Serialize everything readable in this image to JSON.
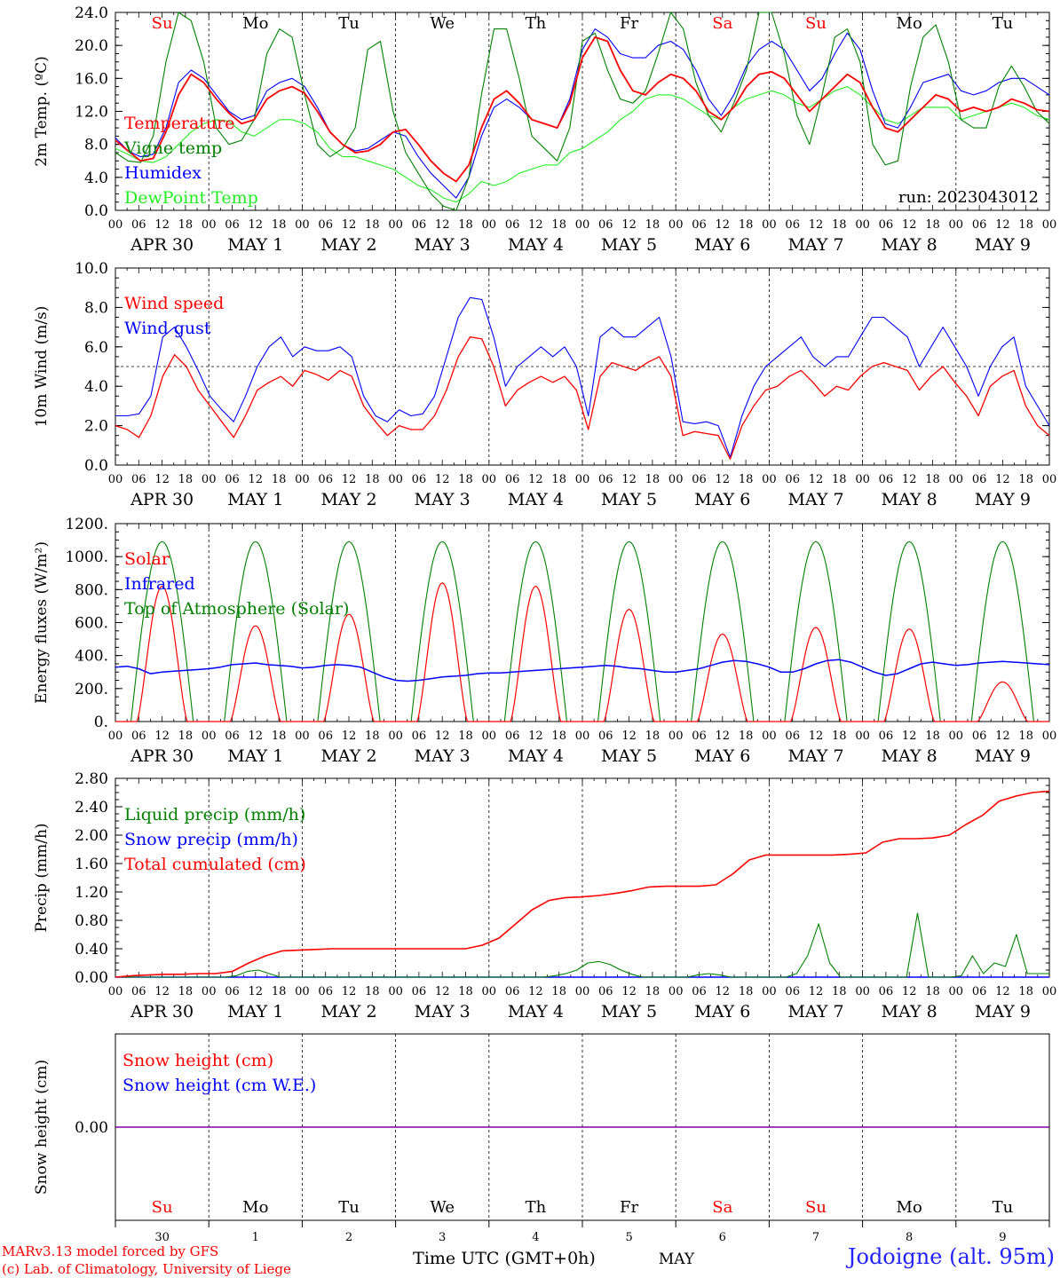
{
  "chart_data": [
    {
      "type": "line",
      "ylabel": "2m Temp. (ºC)",
      "ylim": [
        0,
        24
      ],
      "yticks": [
        "0.0",
        "4.0",
        "8.0",
        "12.0",
        "16.0",
        "20.0",
        "24.0"
      ],
      "day_labels": [
        "Su",
        "Mo",
        "Tu",
        "We",
        "Th",
        "Fr",
        "Sa",
        "Su",
        "Mo",
        "Tu"
      ],
      "weekend_days": [
        0,
        6,
        7
      ],
      "date_labels": [
        "APR 30",
        "MAY  1",
        "MAY  2",
        "MAY  3",
        "MAY  4",
        "MAY  5",
        "MAY  6",
        "MAY  7",
        "MAY  8",
        "MAY  9"
      ],
      "hour_labels": [
        "00",
        "06",
        "12",
        "18"
      ],
      "run_label": "run: 2023043012",
      "series": [
        {
          "name": "Temperature",
          "color": "#ff0000",
          "values": [
            8.5,
            7.2,
            6.0,
            6.3,
            9.5,
            14.0,
            16.5,
            15.5,
            13.5,
            11.8,
            10.5,
            11.0,
            13.5,
            14.5,
            15.0,
            14.2,
            12.0,
            9.5,
            8.0,
            7.0,
            7.2,
            8.0,
            9.5,
            9.8,
            8.0,
            6.0,
            4.5,
            3.5,
            5.5,
            10.0,
            13.5,
            14.5,
            13.0,
            11.0,
            10.5,
            10.0,
            13.0,
            18.5,
            21.0,
            20.5,
            17.0,
            14.5,
            14.0,
            15.5,
            16.5,
            16.0,
            14.5,
            12.0,
            11.0,
            12.5,
            15.0,
            16.5,
            16.8,
            16.0,
            14.0,
            12.0,
            13.5,
            15.0,
            16.5,
            15.5,
            12.5,
            10.0,
            9.5,
            11.0,
            12.5,
            14.0,
            13.5,
            12.0,
            12.5,
            12.0,
            12.5,
            13.5,
            13.0,
            12.2,
            12.0
          ]
        },
        {
          "name": "Vigne temp",
          "color": "#008000",
          "values": [
            7.0,
            6.0,
            5.8,
            9.0,
            18.0,
            24.0,
            23.0,
            18.0,
            10.0,
            8.0,
            8.5,
            11.0,
            19.0,
            22.0,
            21.0,
            14.0,
            8.0,
            6.5,
            7.5,
            10.0,
            19.5,
            20.5,
            12.0,
            7.0,
            4.5,
            2.0,
            0.5,
            0.0,
            4.0,
            14.0,
            22.0,
            22.0,
            16.0,
            9.0,
            7.5,
            6.0,
            10.0,
            20.5,
            21.5,
            17.0,
            13.5,
            13.0,
            14.5,
            19.0,
            24.0,
            22.0,
            15.5,
            11.5,
            9.5,
            13.0,
            17.0,
            24.0,
            24.0,
            19.0,
            11.5,
            8.0,
            14.0,
            21.0,
            22.0,
            18.0,
            8.0,
            5.5,
            6.0,
            15.0,
            21.0,
            22.5,
            18.0,
            11.0,
            10.0,
            10.0,
            15.0,
            17.5,
            15.0,
            12.0,
            10.5
          ]
        },
        {
          "name": "Humidex",
          "color": "#0000ff",
          "values": [
            8.8,
            7.2,
            6.5,
            6.8,
            10.0,
            15.5,
            17.0,
            16.0,
            14.0,
            12.0,
            11.0,
            11.5,
            14.5,
            15.5,
            16.0,
            15.0,
            12.5,
            9.5,
            8.0,
            7.2,
            7.5,
            8.5,
            9.5,
            9.0,
            6.5,
            4.5,
            3.0,
            1.5,
            4.0,
            9.0,
            12.5,
            13.5,
            12.5,
            11.0,
            10.5,
            10.0,
            13.5,
            19.5,
            22.0,
            21.0,
            19.0,
            18.5,
            18.5,
            20.0,
            20.5,
            19.5,
            17.0,
            13.5,
            11.5,
            14.0,
            17.5,
            19.5,
            20.5,
            19.5,
            17.0,
            14.5,
            16.0,
            19.0,
            21.5,
            19.5,
            14.5,
            10.5,
            10.0,
            12.5,
            15.5,
            16.0,
            16.5,
            14.5,
            14.0,
            14.5,
            15.5,
            16.0,
            16.0,
            15.0,
            14.0
          ]
        },
        {
          "name": "DewPoint Temp",
          "color": "#22ee22",
          "values": [
            7.5,
            6.8,
            6.0,
            5.8,
            6.5,
            8.0,
            9.5,
            10.5,
            11.0,
            10.8,
            9.5,
            9.0,
            10.0,
            11.0,
            11.0,
            10.5,
            9.5,
            7.5,
            6.5,
            6.5,
            6.0,
            5.5,
            5.0,
            4.0,
            3.0,
            2.5,
            1.5,
            1.0,
            2.0,
            3.5,
            3.0,
            3.5,
            4.5,
            5.0,
            5.5,
            5.5,
            7.0,
            7.5,
            8.5,
            9.5,
            11.0,
            12.0,
            13.5,
            14.0,
            14.0,
            13.5,
            12.5,
            11.5,
            11.0,
            12.5,
            13.5,
            14.0,
            14.5,
            14.0,
            13.0,
            12.5,
            13.5,
            14.5,
            15.0,
            14.0,
            12.5,
            11.0,
            10.5,
            11.5,
            12.5,
            12.5,
            12.5,
            11.0,
            11.5,
            12.0,
            12.5,
            13.0,
            12.5,
            11.5,
            11.0
          ]
        }
      ]
    },
    {
      "type": "line",
      "ylabel": "10m Wind (m/s)",
      "ylim": [
        0,
        10
      ],
      "yticks": [
        "0.0",
        "2.0",
        "4.0",
        "6.0",
        "8.0",
        "10.0"
      ],
      "reference_line": 5.0,
      "date_labels": [
        "APR 30",
        "MAY  1",
        "MAY  2",
        "MAY  3",
        "MAY  4",
        "MAY  5",
        "MAY  6",
        "MAY  7",
        "MAY  8",
        "MAY  9"
      ],
      "hour_labels": [
        "00",
        "06",
        "12",
        "18"
      ],
      "series": [
        {
          "name": "Wind speed",
          "color": "#ff0000",
          "values": [
            2.0,
            1.8,
            1.4,
            2.5,
            4.5,
            5.6,
            5.0,
            3.8,
            3.0,
            2.2,
            1.4,
            2.5,
            3.8,
            4.2,
            4.5,
            4.0,
            4.8,
            4.6,
            4.3,
            4.8,
            4.5,
            3.0,
            2.2,
            1.5,
            2.0,
            1.8,
            1.8,
            2.5,
            3.8,
            5.5,
            6.5,
            6.4,
            5.0,
            3.0,
            3.8,
            4.2,
            4.5,
            4.2,
            4.5,
            3.8,
            1.8,
            4.5,
            5.2,
            5.0,
            4.8,
            5.2,
            5.5,
            4.5,
            1.5,
            1.7,
            1.6,
            1.5,
            0.3,
            2.0,
            3.0,
            3.8,
            4.0,
            4.5,
            4.8,
            4.2,
            3.5,
            4.0,
            3.8,
            4.5,
            5.0,
            5.2,
            5.0,
            4.8,
            3.8,
            4.5,
            5.0,
            4.2,
            3.5,
            2.5,
            4.0,
            4.5,
            4.8,
            3.0,
            2.0,
            1.5
          ]
        },
        {
          "name": "Wind gust",
          "color": "#0000ff",
          "values": [
            2.5,
            2.5,
            2.6,
            3.5,
            6.5,
            7.0,
            6.0,
            4.8,
            3.5,
            2.8,
            2.2,
            3.5,
            5.0,
            6.0,
            6.5,
            5.5,
            6.0,
            5.8,
            5.8,
            6.0,
            5.5,
            3.5,
            2.5,
            2.2,
            2.8,
            2.5,
            2.6,
            3.5,
            5.5,
            7.5,
            8.5,
            8.4,
            6.5,
            4.0,
            5.0,
            5.5,
            6.0,
            5.5,
            6.0,
            5.0,
            2.5,
            6.5,
            7.0,
            6.5,
            6.5,
            7.0,
            7.5,
            5.5,
            2.2,
            2.1,
            2.2,
            2.0,
            0.4,
            2.5,
            4.0,
            5.0,
            5.5,
            6.0,
            6.5,
            5.5,
            5.0,
            5.5,
            5.5,
            6.5,
            7.5,
            7.5,
            7.0,
            6.5,
            5.0,
            6.0,
            7.0,
            6.0,
            5.0,
            3.5,
            5.0,
            6.0,
            6.5,
            4.0,
            3.0,
            2.0
          ]
        }
      ]
    },
    {
      "type": "line",
      "ylabel": "Energy fluxes (W/m²)",
      "ylim": [
        0,
        1200
      ],
      "yticks": [
        "0.",
        "200.",
        "400.",
        "600.",
        "800.",
        "1000.",
        "1200."
      ],
      "date_labels": [
        "APR 30",
        "MAY  1",
        "MAY  2",
        "MAY  3",
        "MAY  4",
        "MAY  5",
        "MAY  6",
        "MAY  7",
        "MAY  8",
        "MAY  9"
      ],
      "hour_labels": [
        "00",
        "06",
        "12",
        "18"
      ],
      "daily_solar_peaks": [
        820,
        580,
        650,
        840,
        820,
        680,
        530,
        570,
        560,
        240
      ],
      "toa_peak": 1090,
      "series": [
        {
          "name": "Solar",
          "color": "#ff0000"
        },
        {
          "name": "Infrared",
          "color": "#0000ff",
          "values": [
            330,
            335,
            320,
            290,
            300,
            305,
            310,
            315,
            320,
            330,
            345,
            350,
            355,
            345,
            340,
            335,
            325,
            330,
            340,
            345,
            340,
            330,
            300,
            270,
            250,
            245,
            250,
            260,
            270,
            275,
            280,
            290,
            295,
            295,
            300,
            305,
            310,
            315,
            320,
            325,
            330,
            335,
            340,
            335,
            325,
            320,
            310,
            300,
            300,
            310,
            320,
            340,
            360,
            370,
            365,
            350,
            330,
            300,
            300,
            320,
            350,
            370,
            375,
            360,
            330,
            300,
            280,
            290,
            320,
            350,
            360,
            350,
            340,
            345,
            355,
            360,
            365,
            360,
            355,
            350,
            345
          ]
        },
        {
          "name": "Top of Atmosphere (Solar)",
          "color": "#008000"
        }
      ]
    },
    {
      "type": "line",
      "ylabel": "Precip (mm/h)",
      "ylim": [
        0,
        2.8
      ],
      "yticks": [
        "0.00",
        "0.40",
        "0.80",
        "1.20",
        "1.60",
        "2.00",
        "2.40",
        "2.80"
      ],
      "date_labels": [
        "APR 30",
        "MAY  1",
        "MAY  2",
        "MAY  3",
        "MAY  4",
        "MAY  5",
        "MAY  6",
        "MAY  7",
        "MAY  8",
        "MAY  9"
      ],
      "hour_labels": [
        "00",
        "06",
        "12",
        "18"
      ],
      "series": [
        {
          "name": "Liquid precip (mm/h)",
          "color": "#008000",
          "values": [
            0,
            0,
            0,
            0,
            0,
            0,
            0,
            0,
            0,
            0,
            0,
            0.02,
            0.08,
            0.1,
            0.05,
            0,
            0,
            0,
            0,
            0,
            0,
            0,
            0,
            0,
            0,
            0,
            0,
            0,
            0,
            0,
            0,
            0,
            0,
            0,
            0,
            0,
            0,
            0,
            0,
            0,
            0.02,
            0.05,
            0.1,
            0.2,
            0.22,
            0.18,
            0.1,
            0.04,
            0,
            0,
            0,
            0,
            0,
            0.03,
            0.05,
            0.03,
            0,
            0,
            0,
            0,
            0,
            0,
            0.05,
            0.3,
            0.75,
            0.2,
            0,
            0,
            0,
            0,
            0,
            0,
            0,
            0.9,
            0,
            0,
            0,
            0.02,
            0.3,
            0.05,
            0.2,
            0.15,
            0.6,
            0.05,
            0.05,
            0.05
          ]
        },
        {
          "name": "Snow precip (mm/h)",
          "color": "#0000ff",
          "values": [
            0
          ]
        },
        {
          "name": "Total cumulated (cm)",
          "color": "#ff0000",
          "values": [
            0,
            0.02,
            0.03,
            0.04,
            0.04,
            0.05,
            0.05,
            0.08,
            0.2,
            0.3,
            0.37,
            0.38,
            0.39,
            0.4,
            0.4,
            0.4,
            0.4,
            0.4,
            0.4,
            0.4,
            0.4,
            0.4,
            0.45,
            0.55,
            0.75,
            0.95,
            1.08,
            1.12,
            1.13,
            1.15,
            1.18,
            1.22,
            1.27,
            1.28,
            1.28,
            1.28,
            1.3,
            1.45,
            1.65,
            1.72,
            1.72,
            1.72,
            1.72,
            1.72,
            1.73,
            1.75,
            1.9,
            1.95,
            1.95,
            1.96,
            2.0,
            2.15,
            2.28,
            2.48,
            2.55,
            2.6,
            2.62
          ]
        }
      ]
    },
    {
      "type": "line",
      "ylabel": "Snow height (cm)",
      "ylim": [
        -1,
        1
      ],
      "yticks": [
        "0.00"
      ],
      "series": [
        {
          "name": "Snow height (cm)",
          "color": "#ff0000",
          "values": [
            0,
            0
          ]
        },
        {
          "name": "Snow height (cm W.E.)",
          "color": "#0000ff",
          "values": [
            0,
            0
          ]
        }
      ],
      "day_labels": [
        "Su",
        "Mo",
        "Tu",
        "We",
        "Th",
        "Fr",
        "Sa",
        "Su",
        "Mo",
        "Tu"
      ],
      "weekend_days": [
        0,
        6,
        7
      ],
      "day_numbers": [
        "30",
        "1",
        "2",
        "3",
        "4",
        "5",
        "6",
        "7",
        "8",
        "9"
      ],
      "xlabel": "Time UTC (GMT+0h)",
      "month_label": "MAY"
    }
  ],
  "footer": {
    "credit_line1": "MARv3.13 model forced by GFS",
    "credit_line2": "(c) Lab. of Climatology, University of Liege",
    "station": "Jodoigne (alt. 95m)"
  }
}
